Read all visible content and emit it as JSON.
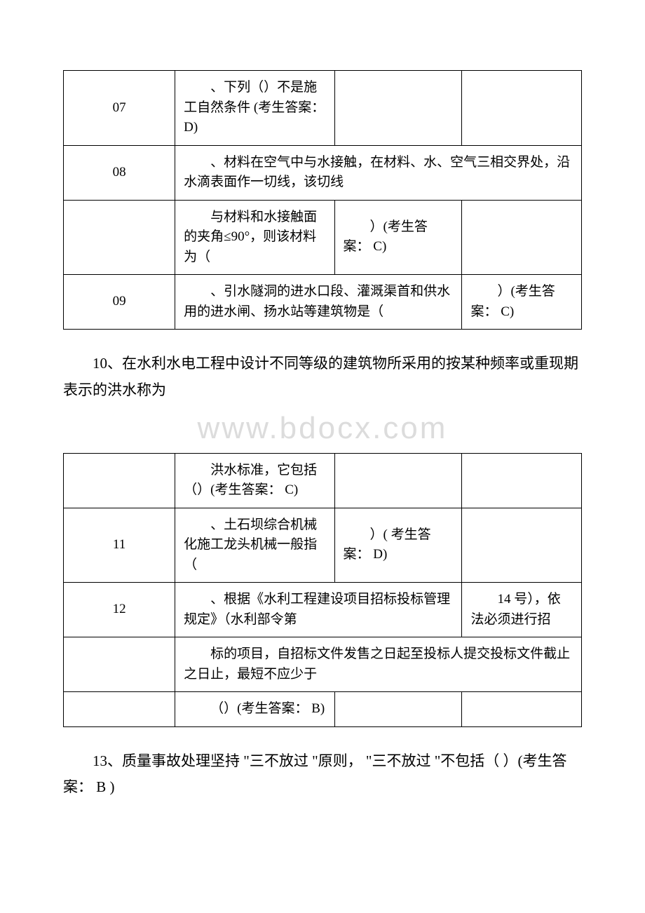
{
  "table1": {
    "r1": {
      "num": "07",
      "q": "、下列（）不是施工自然条件 (考生答案：D)"
    },
    "r2": {
      "num": "08",
      "q": "、材料在空气中与水接触，在材料、水、空气三相交界处，沿水滴表面作一切线，该切线"
    },
    "r3": {
      "q": "与材料和水接触面的夹角≤90°，则该材料为（",
      "a": "）(考生答案： C)"
    },
    "r4": {
      "num": "09",
      "q": "、引水隧洞的进水口段、灌溉渠首和供水用的进水闸、扬水站等建筑物是（",
      "a": "）(考生答案： C)"
    }
  },
  "para1": "10、在水利水电工程中设计不同等级的建筑物所采用的按某种频率或重现期表示的洪水称为",
  "watermark": "www.bdocx.com",
  "table2": {
    "r1": {
      "q": "洪水标准，它包括（）(考生答案： C)"
    },
    "r2": {
      "num": "11",
      "q": "、土石坝综合机械化施工龙头机械一般指（",
      "a": "）( 考生答案： D)"
    },
    "r3": {
      "num": "12",
      "q": "、根据《水利工程建设项目招标投标管理规定》（水利部令第",
      "a": "14 号），依法必须进行招"
    },
    "r4": {
      "q": "标的项目，自招标文件发售之日起至投标人提交投标文件截止之日止，最短不应少于"
    },
    "r5": {
      "q": "（）(考生答案： B)"
    }
  },
  "para2": "13、质量事故处理坚持 \"三不放过 \"原则， \"三不放过 \"不包括（ ）(考生答案： B )"
}
